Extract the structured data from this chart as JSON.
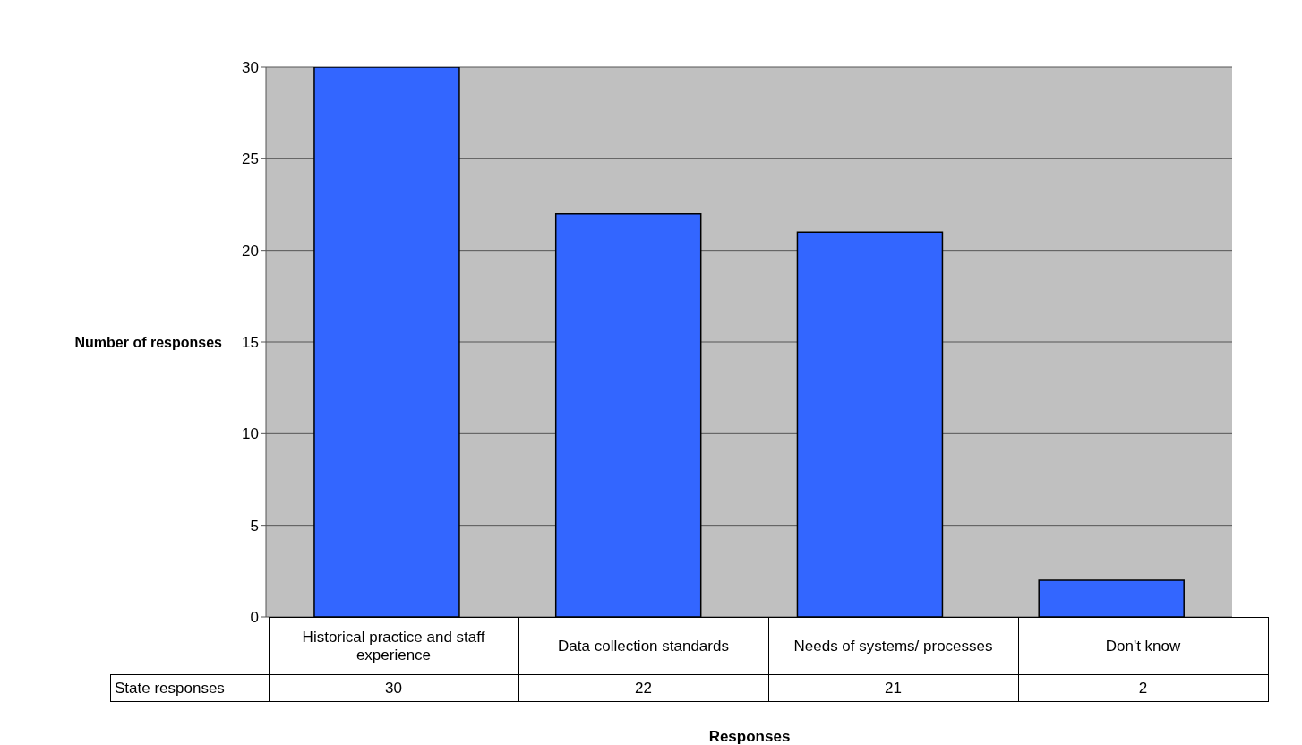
{
  "chart_data": {
    "type": "bar",
    "xlabel": "Responses",
    "ylabel": "Number of responses",
    "categories": [
      "Historical practice and staff experience",
      "Data collection standards",
      "Needs of systems/ processes",
      "Don't know"
    ],
    "series": [
      {
        "name": "State responses",
        "color": "#3366ff",
        "values": [
          30,
          22,
          21,
          2
        ]
      }
    ],
    "ylim": [
      0,
      30
    ],
    "yticks": [
      0,
      5,
      10,
      15,
      20,
      25,
      30
    ],
    "grid": "y",
    "data_labels": true,
    "legend": false
  }
}
